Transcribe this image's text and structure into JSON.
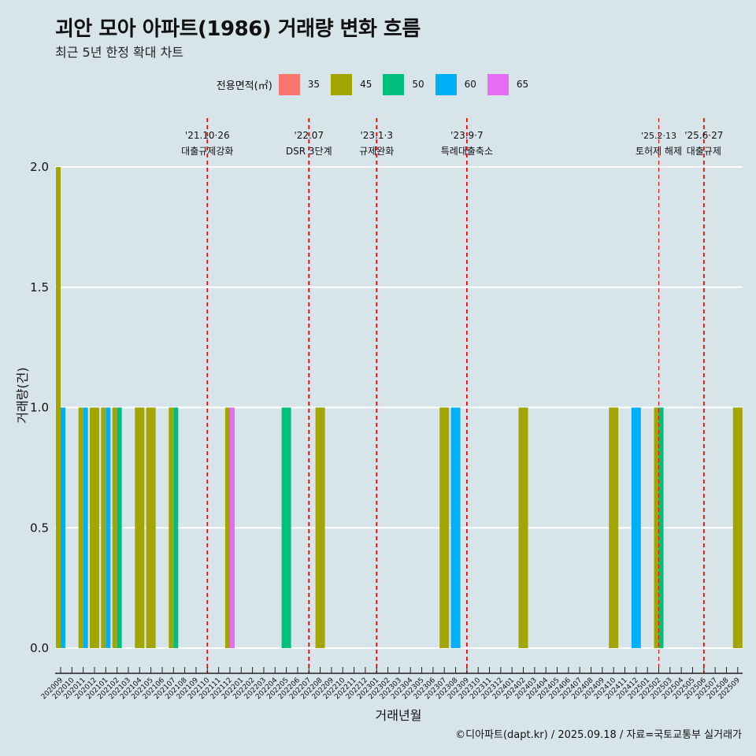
{
  "title": "괴안 모아 아파트(1986) 거래량 변화 흐름",
  "subtitle": "최근 5년 한정 확대 차트",
  "caption": "©디아파트(dapt.kr) / 2025.09.18 / 자료=국토교통부 실거래가",
  "legend": {
    "title": "전용면적(㎡)",
    "items": [
      {
        "label": "35",
        "color": "#F8766D"
      },
      {
        "label": "45",
        "color": "#A3A500"
      },
      {
        "label": "50",
        "color": "#00BF7D"
      },
      {
        "label": "60",
        "color": "#00B0F6"
      },
      {
        "label": "65",
        "color": "#E76BF3"
      }
    ]
  },
  "chart_data": {
    "type": "bar",
    "title": "괴안 모아 아파트(1986) 거래량 변화 흐름",
    "xlabel": "거래년월",
    "ylabel": "거래량(건)",
    "ylim": [
      0,
      2
    ],
    "yticks": [
      0.0,
      0.5,
      1.0,
      1.5,
      2.0
    ],
    "ytick_labels": [
      "0.0",
      "0.5",
      "1.0",
      "1.5",
      "2.0"
    ],
    "categories": [
      "202009",
      "202010",
      "202011",
      "202012",
      "202101",
      "202102",
      "202103",
      "202104",
      "202105",
      "202106",
      "202107",
      "202108",
      "202109",
      "202110",
      "202111",
      "202112",
      "202201",
      "202202",
      "202203",
      "202204",
      "202205",
      "202206",
      "202207",
      "202208",
      "202209",
      "202210",
      "202211",
      "202212",
      "202301",
      "202302",
      "202303",
      "202304",
      "202305",
      "202306",
      "202307",
      "202308",
      "202309",
      "202310",
      "202311",
      "202312",
      "202401",
      "202402",
      "202403",
      "202404",
      "202405",
      "202406",
      "202407",
      "202408",
      "202409",
      "202410",
      "202411",
      "202412",
      "202501",
      "202502",
      "202503",
      "202504",
      "202505",
      "202506",
      "202507",
      "202508",
      "202509"
    ],
    "series_colors": {
      "35": "#F8766D",
      "45": "#A3A500",
      "50": "#00BF7D",
      "60": "#00B0F6",
      "65": "#E76BF3"
    },
    "bars": [
      {
        "month": "202009",
        "groups": [
          {
            "area": "45",
            "count": 2
          },
          {
            "area": "60",
            "count": 1
          }
        ]
      },
      {
        "month": "202011",
        "groups": [
          {
            "area": "45",
            "count": 1
          },
          {
            "area": "60",
            "count": 1
          }
        ]
      },
      {
        "month": "202012",
        "groups": [
          {
            "area": "45",
            "count": 1
          }
        ]
      },
      {
        "month": "202101",
        "groups": [
          {
            "area": "45",
            "count": 1
          },
          {
            "area": "60",
            "count": 1
          }
        ]
      },
      {
        "month": "202102",
        "groups": [
          {
            "area": "45",
            "count": 1
          },
          {
            "area": "50",
            "count": 1
          }
        ]
      },
      {
        "month": "202104",
        "groups": [
          {
            "area": "45",
            "count": 1
          }
        ]
      },
      {
        "month": "202105",
        "groups": [
          {
            "area": "45",
            "count": 1
          }
        ]
      },
      {
        "month": "202107",
        "groups": [
          {
            "area": "45",
            "count": 1
          },
          {
            "area": "50",
            "count": 1
          }
        ]
      },
      {
        "month": "202112",
        "groups": [
          {
            "area": "45",
            "count": 1
          },
          {
            "area": "65",
            "count": 1
          }
        ]
      },
      {
        "month": "202205",
        "groups": [
          {
            "area": "50",
            "count": 1
          }
        ]
      },
      {
        "month": "202208",
        "groups": [
          {
            "area": "45",
            "count": 1
          }
        ]
      },
      {
        "month": "202307",
        "groups": [
          {
            "area": "45",
            "count": 1
          }
        ]
      },
      {
        "month": "202308",
        "groups": [
          {
            "area": "60",
            "count": 1
          }
        ]
      },
      {
        "month": "202402",
        "groups": [
          {
            "area": "45",
            "count": 1
          }
        ]
      },
      {
        "month": "202410",
        "groups": [
          {
            "area": "45",
            "count": 1
          }
        ]
      },
      {
        "month": "202412",
        "groups": [
          {
            "area": "60",
            "count": 1
          }
        ]
      },
      {
        "month": "202502",
        "groups": [
          {
            "area": "45",
            "count": 1
          },
          {
            "area": "50",
            "count": 1
          }
        ]
      },
      {
        "month": "202509",
        "groups": [
          {
            "area": "45",
            "count": 1
          }
        ]
      }
    ],
    "annotations": [
      {
        "position": "202110",
        "date": "'21.10·26",
        "text": "대출규제강화",
        "style": "dashed"
      },
      {
        "position": "202207",
        "date": "'22.07",
        "text": "DSR 3단계",
        "style": "dashed"
      },
      {
        "position": "202301",
        "date": "'23.1·3",
        "text": "규제완화",
        "style": "dashed"
      },
      {
        "position": "202309",
        "date": "'23.9·7",
        "text": "특례대출축소",
        "style": "dashed"
      },
      {
        "position": "202502",
        "date": "'25.2·13",
        "text": "토허제 해제",
        "style": "thin-dashed"
      },
      {
        "position": "202506",
        "date": "'25.6·27",
        "text": "대출규제",
        "style": "dashed"
      }
    ]
  }
}
